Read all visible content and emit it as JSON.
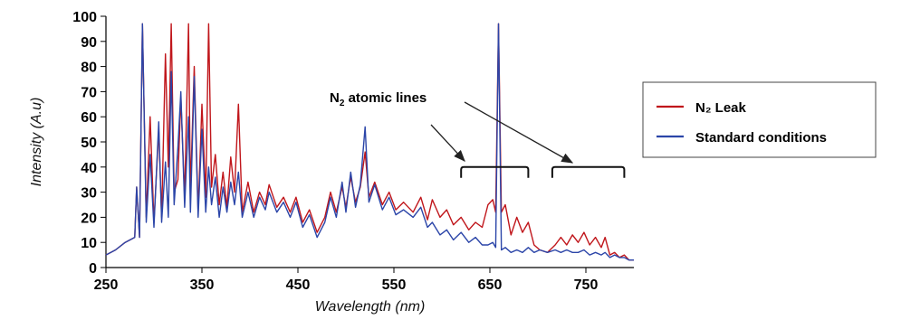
{
  "chart_data": {
    "type": "line",
    "xlabel": "Wavelength (nm)",
    "ylabel": "Intensity (A.u)",
    "xlim": [
      250,
      800
    ],
    "ylim": [
      0,
      100
    ],
    "x_ticks": [
      250,
      350,
      450,
      550,
      650,
      750
    ],
    "y_ticks": [
      0,
      10,
      20,
      30,
      40,
      50,
      60,
      70,
      80,
      90,
      100
    ],
    "grid": false,
    "legend_position": "right",
    "annotation": {
      "text_main": "N",
      "text_sub": "2",
      "text_rest": " atomic lines",
      "bracket_ranges": [
        [
          620,
          690
        ],
        [
          715,
          790
        ]
      ]
    },
    "series": [
      {
        "name": "N₂ Leak",
        "color": "#c0161b",
        "points": [
          [
            250,
            5
          ],
          [
            260,
            7
          ],
          [
            270,
            10
          ],
          [
            280,
            12
          ],
          [
            282,
            32
          ],
          [
            285,
            12
          ],
          [
            288,
            97
          ],
          [
            292,
            20
          ],
          [
            296,
            60
          ],
          [
            300,
            18
          ],
          [
            305,
            55
          ],
          [
            308,
            20
          ],
          [
            312,
            85
          ],
          [
            315,
            40
          ],
          [
            318,
            97
          ],
          [
            321,
            30
          ],
          [
            325,
            35
          ],
          [
            328,
            68
          ],
          [
            332,
            28
          ],
          [
            336,
            97
          ],
          [
            338,
            30
          ],
          [
            342,
            80
          ],
          [
            346,
            22
          ],
          [
            350,
            65
          ],
          [
            354,
            28
          ],
          [
            357,
            97
          ],
          [
            360,
            32
          ],
          [
            364,
            45
          ],
          [
            368,
            25
          ],
          [
            372,
            38
          ],
          [
            376,
            24
          ],
          [
            380,
            44
          ],
          [
            384,
            30
          ],
          [
            388,
            65
          ],
          [
            392,
            22
          ],
          [
            398,
            34
          ],
          [
            404,
            22
          ],
          [
            410,
            30
          ],
          [
            416,
            25
          ],
          [
            420,
            33
          ],
          [
            428,
            24
          ],
          [
            435,
            28
          ],
          [
            442,
            22
          ],
          [
            448,
            28
          ],
          [
            455,
            18
          ],
          [
            462,
            23
          ],
          [
            470,
            14
          ],
          [
            478,
            20
          ],
          [
            484,
            30
          ],
          [
            490,
            22
          ],
          [
            496,
            32
          ],
          [
            500,
            24
          ],
          [
            505,
            36
          ],
          [
            510,
            26
          ],
          [
            515,
            32
          ],
          [
            520,
            46
          ],
          [
            524,
            28
          ],
          [
            530,
            34
          ],
          [
            538,
            25
          ],
          [
            545,
            30
          ],
          [
            552,
            23
          ],
          [
            560,
            26
          ],
          [
            570,
            22
          ],
          [
            578,
            28
          ],
          [
            585,
            19
          ],
          [
            590,
            27
          ],
          [
            598,
            20
          ],
          [
            605,
            23
          ],
          [
            612,
            17
          ],
          [
            620,
            20
          ],
          [
            628,
            15
          ],
          [
            635,
            18
          ],
          [
            642,
            16
          ],
          [
            648,
            25
          ],
          [
            653,
            27
          ],
          [
            656,
            22
          ],
          [
            659,
            97
          ],
          [
            662,
            22
          ],
          [
            666,
            25
          ],
          [
            672,
            13
          ],
          [
            678,
            20
          ],
          [
            684,
            14
          ],
          [
            690,
            18
          ],
          [
            696,
            9
          ],
          [
            702,
            7
          ],
          [
            710,
            6
          ],
          [
            718,
            9
          ],
          [
            724,
            12
          ],
          [
            730,
            9
          ],
          [
            736,
            13
          ],
          [
            742,
            10
          ],
          [
            748,
            14
          ],
          [
            754,
            9
          ],
          [
            760,
            12
          ],
          [
            766,
            8
          ],
          [
            770,
            12
          ],
          [
            775,
            5
          ],
          [
            780,
            6
          ],
          [
            785,
            4
          ],
          [
            790,
            5
          ],
          [
            795,
            3
          ],
          [
            800,
            3
          ]
        ]
      },
      {
        "name": "Standard conditions",
        "color": "#2b45a8",
        "points": [
          [
            250,
            5
          ],
          [
            260,
            7
          ],
          [
            270,
            10
          ],
          [
            280,
            12
          ],
          [
            282,
            32
          ],
          [
            285,
            12
          ],
          [
            288,
            97
          ],
          [
            292,
            18
          ],
          [
            296,
            45
          ],
          [
            300,
            16
          ],
          [
            305,
            58
          ],
          [
            308,
            18
          ],
          [
            312,
            42
          ],
          [
            315,
            20
          ],
          [
            318,
            78
          ],
          [
            321,
            25
          ],
          [
            325,
            48
          ],
          [
            328,
            70
          ],
          [
            332,
            24
          ],
          [
            336,
            60
          ],
          [
            338,
            22
          ],
          [
            342,
            76
          ],
          [
            346,
            20
          ],
          [
            350,
            55
          ],
          [
            354,
            22
          ],
          [
            357,
            40
          ],
          [
            360,
            25
          ],
          [
            364,
            36
          ],
          [
            368,
            20
          ],
          [
            372,
            32
          ],
          [
            376,
            22
          ],
          [
            380,
            34
          ],
          [
            384,
            25
          ],
          [
            388,
            38
          ],
          [
            392,
            20
          ],
          [
            398,
            30
          ],
          [
            404,
            20
          ],
          [
            410,
            28
          ],
          [
            416,
            23
          ],
          [
            420,
            30
          ],
          [
            428,
            22
          ],
          [
            435,
            26
          ],
          [
            442,
            20
          ],
          [
            448,
            26
          ],
          [
            455,
            16
          ],
          [
            462,
            21
          ],
          [
            470,
            12
          ],
          [
            478,
            18
          ],
          [
            484,
            28
          ],
          [
            490,
            20
          ],
          [
            496,
            34
          ],
          [
            500,
            22
          ],
          [
            505,
            38
          ],
          [
            510,
            24
          ],
          [
            515,
            33
          ],
          [
            520,
            56
          ],
          [
            524,
            26
          ],
          [
            530,
            33
          ],
          [
            538,
            23
          ],
          [
            545,
            28
          ],
          [
            552,
            21
          ],
          [
            560,
            23
          ],
          [
            570,
            20
          ],
          [
            578,
            24
          ],
          [
            585,
            16
          ],
          [
            590,
            18
          ],
          [
            598,
            13
          ],
          [
            605,
            15
          ],
          [
            612,
            11
          ],
          [
            620,
            14
          ],
          [
            628,
            10
          ],
          [
            635,
            12
          ],
          [
            642,
            9
          ],
          [
            648,
            9
          ],
          [
            653,
            10
          ],
          [
            656,
            8
          ],
          [
            659,
            97
          ],
          [
            662,
            7
          ],
          [
            666,
            8
          ],
          [
            672,
            6
          ],
          [
            678,
            7
          ],
          [
            684,
            6
          ],
          [
            690,
            8
          ],
          [
            696,
            6
          ],
          [
            702,
            7
          ],
          [
            710,
            6
          ],
          [
            718,
            7
          ],
          [
            724,
            6
          ],
          [
            730,
            7
          ],
          [
            736,
            6
          ],
          [
            742,
            6
          ],
          [
            748,
            7
          ],
          [
            754,
            5
          ],
          [
            760,
            6
          ],
          [
            766,
            5
          ],
          [
            770,
            6
          ],
          [
            775,
            4
          ],
          [
            780,
            5
          ],
          [
            785,
            4
          ],
          [
            790,
            4
          ],
          [
            795,
            3
          ],
          [
            800,
            3
          ]
        ]
      }
    ]
  }
}
